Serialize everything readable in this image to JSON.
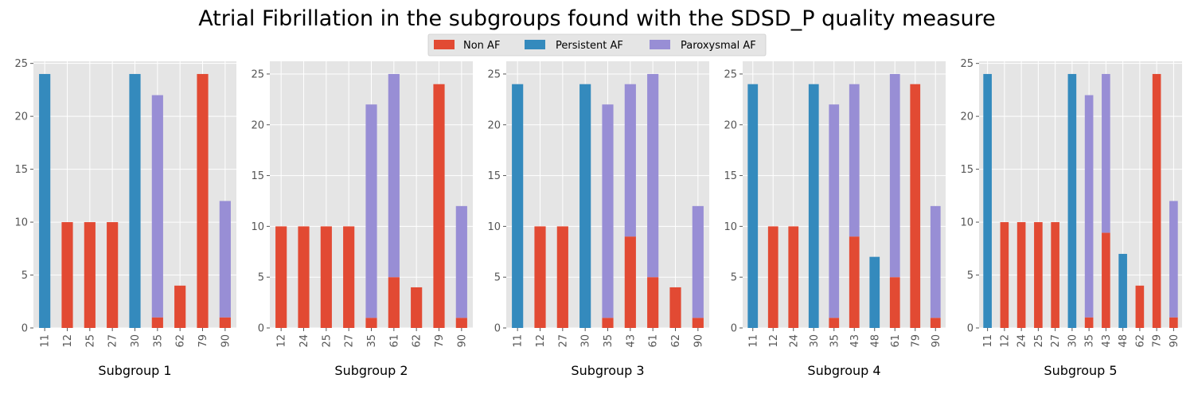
{
  "title": "Atrial Fibrillation in the subgroups found with the SDSD_P quality measure",
  "legend": [
    {
      "label": "Non AF",
      "color": "#E24A33"
    },
    {
      "label": "Persistent AF",
      "color": "#348ABD"
    },
    {
      "label": "Paroxysmal AF",
      "color": "#988ED5"
    }
  ],
  "chart_data": [
    {
      "type": "bar",
      "stacked": true,
      "title": "Subgroup 1",
      "categories": [
        "11",
        "12",
        "25",
        "27",
        "30",
        "35",
        "62",
        "79",
        "90"
      ],
      "series": [
        {
          "name": "Non AF",
          "values": [
            0,
            10,
            10,
            10,
            0,
            1,
            4,
            24,
            1
          ]
        },
        {
          "name": "Persistent AF",
          "values": [
            24,
            0,
            0,
            0,
            24,
            0,
            0,
            0,
            0
          ]
        },
        {
          "name": "Paroxysmal AF",
          "values": [
            0,
            0,
            0,
            0,
            0,
            21,
            0,
            0,
            11
          ]
        }
      ],
      "yticks": [
        0,
        5,
        10,
        15,
        20,
        25
      ],
      "ylim": [
        0,
        25.2
      ]
    },
    {
      "type": "bar",
      "stacked": true,
      "title": "Subgroup 2",
      "categories": [
        "12",
        "24",
        "25",
        "27",
        "35",
        "61",
        "62",
        "79",
        "90"
      ],
      "series": [
        {
          "name": "Non AF",
          "values": [
            10,
            10,
            10,
            10,
            1,
            5,
            4,
            24,
            1
          ]
        },
        {
          "name": "Persistent AF",
          "values": [
            0,
            0,
            0,
            0,
            0,
            0,
            0,
            0,
            0
          ]
        },
        {
          "name": "Paroxysmal AF",
          "values": [
            0,
            0,
            0,
            0,
            21,
            20,
            0,
            0,
            11
          ]
        }
      ],
      "yticks": [
        0,
        5,
        10,
        15,
        20,
        25
      ],
      "ylim": [
        0,
        26.25
      ]
    },
    {
      "type": "bar",
      "stacked": true,
      "title": "Subgroup 3",
      "categories": [
        "11",
        "12",
        "27",
        "30",
        "35",
        "43",
        "61",
        "62",
        "90"
      ],
      "series": [
        {
          "name": "Non AF",
          "values": [
            0,
            10,
            10,
            0,
            1,
            9,
            5,
            4,
            1
          ]
        },
        {
          "name": "Persistent AF",
          "values": [
            24,
            0,
            0,
            24,
            0,
            0,
            0,
            0,
            0
          ]
        },
        {
          "name": "Paroxysmal AF",
          "values": [
            0,
            0,
            0,
            0,
            21,
            15,
            20,
            0,
            11
          ]
        }
      ],
      "yticks": [
        0,
        5,
        10,
        15,
        20,
        25
      ],
      "ylim": [
        0,
        26.25
      ]
    },
    {
      "type": "bar",
      "stacked": true,
      "title": "Subgroup 4",
      "categories": [
        "11",
        "12",
        "24",
        "30",
        "35",
        "43",
        "48",
        "61",
        "79",
        "90"
      ],
      "series": [
        {
          "name": "Non AF",
          "values": [
            0,
            10,
            10,
            0,
            1,
            9,
            0,
            5,
            24,
            1
          ]
        },
        {
          "name": "Persistent AF",
          "values": [
            24,
            0,
            0,
            24,
            0,
            0,
            7,
            0,
            0,
            0
          ]
        },
        {
          "name": "Paroxysmal AF",
          "values": [
            0,
            0,
            0,
            0,
            21,
            15,
            0,
            20,
            0,
            11
          ]
        }
      ],
      "yticks": [
        0,
        5,
        10,
        15,
        20,
        25
      ],
      "ylim": [
        0,
        26.25
      ]
    },
    {
      "type": "bar",
      "stacked": true,
      "title": "Subgroup 5",
      "categories": [
        "11",
        "12",
        "24",
        "25",
        "27",
        "30",
        "35",
        "43",
        "48",
        "62",
        "79",
        "90"
      ],
      "series": [
        {
          "name": "Non AF",
          "values": [
            0,
            10,
            10,
            10,
            10,
            0,
            1,
            9,
            0,
            4,
            24,
            1
          ]
        },
        {
          "name": "Persistent AF",
          "values": [
            24,
            0,
            0,
            0,
            0,
            24,
            0,
            0,
            7,
            0,
            0,
            0
          ]
        },
        {
          "name": "Paroxysmal AF",
          "values": [
            0,
            0,
            0,
            0,
            0,
            0,
            21,
            15,
            0,
            0,
            0,
            11
          ]
        }
      ],
      "yticks": [
        0,
        5,
        10,
        15,
        20,
        25
      ],
      "ylim": [
        0,
        25.2
      ]
    }
  ]
}
